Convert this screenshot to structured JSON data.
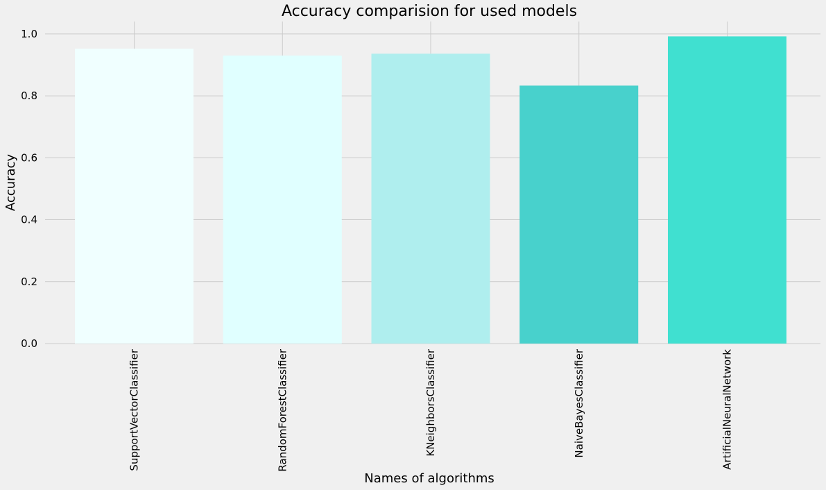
{
  "chart_data": {
    "type": "bar",
    "title": "Accuracy comparision for used models",
    "xlabel": "Names of algorithms",
    "ylabel": "Accuracy",
    "categories": [
      "SupportVectorClassifier",
      "RandomForestClassifier",
      "KNeighborsClassifier",
      "NaiveBayesClassifier",
      "ArtificialNeuralNetwork"
    ],
    "values": [
      0.952,
      0.93,
      0.936,
      0.833,
      0.992
    ],
    "colors": [
      "#f0ffff",
      "#e0ffff",
      "#afeeee",
      "#48d1cc",
      "#40e0d0"
    ],
    "ylim": [
      0,
      1.04
    ],
    "yticks": [
      {
        "value": 0.0,
        "label": "0.0"
      },
      {
        "value": 0.2,
        "label": "0.2"
      },
      {
        "value": 0.4,
        "label": "0.4"
      },
      {
        "value": 0.6,
        "label": "0.6"
      },
      {
        "value": 0.8,
        "label": "0.8"
      },
      {
        "value": 1.0,
        "label": "1.0"
      }
    ],
    "grid": true,
    "background": "#f0f0f0",
    "grid_color": "#cbcbcb"
  }
}
